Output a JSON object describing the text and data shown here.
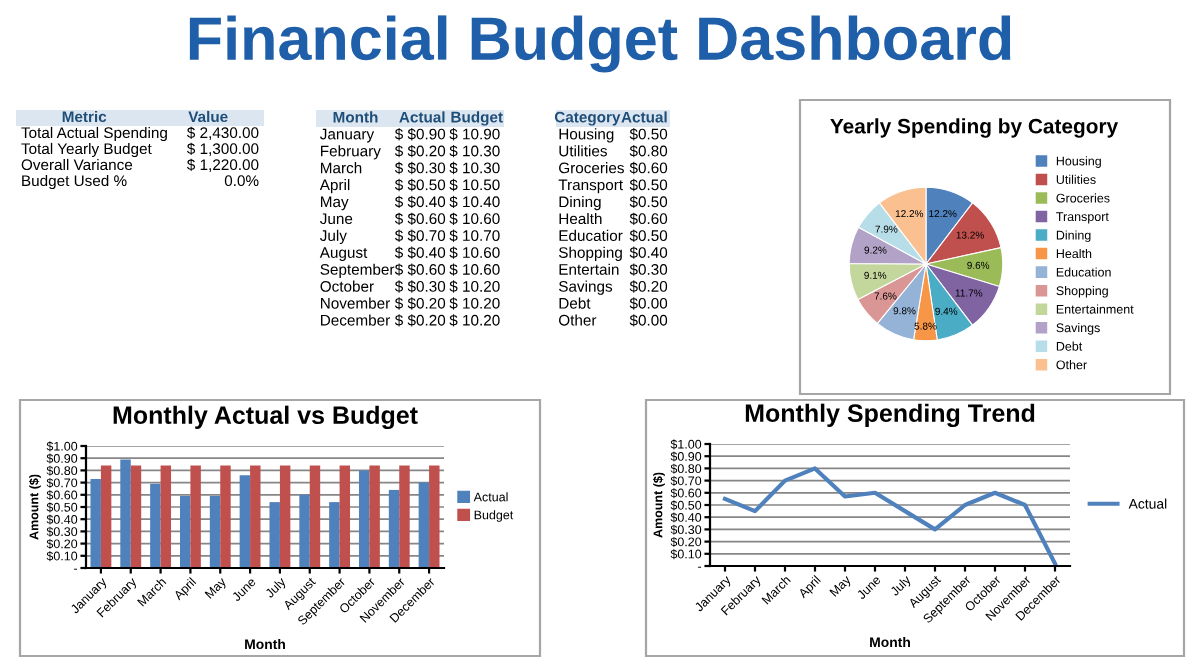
{
  "chart_data": [
    {
      "type": "other",
      "title": "Financial Budget Dashboard"
    },
    {
      "type": "other",
      "categories": [
        "Metric",
        "Value"
      ],
      "annotations": [
        "Total Actual Spending",
        "$ 2,430.00",
        "Total Yearly Budget",
        "$ 1,300.00",
        "Overall Variance",
        "$ 1,220.00",
        "Budget Used %",
        "0.0%"
      ]
    },
    {
      "type": "other",
      "categories": [
        "Month",
        "Actual",
        "Budget"
      ],
      "annotations": [
        "January",
        "$ $0.90",
        "$ 10.90",
        "February",
        "$ $0.20",
        "$ 10.30",
        "March",
        "$ $0.30",
        "$ 10.30",
        "April",
        "$ $0.50",
        "$ 10.50",
        "May",
        "$ $0.40",
        "$ 10.40",
        "June",
        "$ $0.60",
        "$ 10.60",
        "July",
        "$ $0.70",
        "$ 10.70",
        "August",
        "$ $0.40",
        "$ 10.60",
        "September",
        "$ $0.60",
        "$ 10.60",
        "October",
        "$ $0.30",
        "$ 10.20",
        "November",
        "$ $0.20",
        "$ 10.20",
        "December",
        "$ $0.20",
        "$ 10.20"
      ]
    },
    {
      "type": "other",
      "categories": [
        "Category",
        "Actual"
      ],
      "annotations": [
        "Housing",
        "$0.50",
        "Utilities",
        "$0.80",
        "Groceries",
        "$0.60",
        "Transport",
        "$0.50",
        "Dining",
        "$0.50",
        "Health",
        "$0.60",
        "Educatior",
        "$0.50",
        "Shopping",
        "$0.40",
        "Entertain",
        "$0.30",
        "Savings",
        "$0.20",
        "Debt",
        "$0.00",
        "Other",
        "$0.00"
      ]
    },
    {
      "type": "pie",
      "title": "Yearly Spending by Category",
      "legend": "right",
      "categories": [
        "Housing",
        "Utilities",
        "Groceries",
        "Transport",
        "Dining",
        "Health",
        "Education",
        "Shopping",
        "Entertainment",
        "Savings",
        "Debt",
        "Other"
      ],
      "values": [
        12.2,
        13.2,
        9.6,
        11.7,
        9.4,
        5.8,
        9.8,
        7.6,
        9.1,
        9.2,
        7.9,
        12.2
      ],
      "value_labels": [
        "12.2%",
        "13.2%",
        "9.6%",
        "11.7%",
        "9.4%",
        "5.8%",
        "9.8%",
        "7.6%",
        "9.1%",
        "9.2%",
        "7.9%",
        "12.2%"
      ],
      "colors": [
        "#4f81bd",
        "#c0504d",
        "#9bbb59",
        "#8064a2",
        "#4bacc6",
        "#f79646",
        "#95b3d7",
        "#d99694",
        "#c3d69b",
        "#b3a2c7",
        "#b7dee8",
        "#fac090"
      ]
    },
    {
      "type": "bar",
      "title": "Monthly Actual vs Budget",
      "xlabel": "Month",
      "ylabel": "Amount ($)",
      "legend": "right",
      "grid": "y",
      "categories": [
        "January",
        "February",
        "March",
        "April",
        "May",
        "June",
        "July",
        "August",
        "September",
        "October",
        "November",
        "December"
      ],
      "series": [
        {
          "name": "Actual",
          "color": "#4f81bd",
          "values": [
            0.73,
            0.89,
            0.69,
            0.59,
            0.59,
            0.76,
            0.54,
            0.6,
            0.54,
            0.8,
            0.64,
            0.7
          ]
        },
        {
          "name": "Budget",
          "color": "#c0504d",
          "values": [
            0.84,
            0.84,
            0.84,
            0.84,
            0.84,
            0.84,
            0.84,
            0.84,
            0.84,
            0.84,
            0.84,
            0.84
          ]
        }
      ],
      "ylim": [
        0,
        1.0
      ],
      "yticks": [
        {
          "value": 0,
          "label": "-"
        },
        {
          "value": 0.1,
          "label": "$0.10"
        },
        {
          "value": 0.2,
          "label": "$0.20"
        },
        {
          "value": 0.3,
          "label": "$0.30"
        },
        {
          "value": 0.4,
          "label": "$0.40"
        },
        {
          "value": 0.5,
          "label": "$0.50"
        },
        {
          "value": 0.6,
          "label": "$0.60"
        },
        {
          "value": 0.7,
          "label": "$0.70"
        },
        {
          "value": 0.8,
          "label": "$0.80"
        },
        {
          "value": 0.9,
          "label": "$0.90"
        },
        {
          "value": 1.0,
          "label": "$1.00"
        }
      ]
    },
    {
      "type": "line",
      "title": "Monthly Spending Trend",
      "xlabel": "Month",
      "ylabel": "Amount ($)",
      "legend": "right",
      "grid": "y",
      "marker": "none",
      "line_style": "solid",
      "categories": [
        "January",
        "February",
        "March",
        "April",
        "May",
        "June",
        "July",
        "August",
        "September",
        "October",
        "November",
        "December"
      ],
      "series": [
        {
          "name": "Actual",
          "color": "#4f81bd",
          "values": [
            0.55,
            0.45,
            0.7,
            0.8,
            0.57,
            0.6,
            0.45,
            0.3,
            0.5,
            0.6,
            0.5,
            0.02
          ]
        }
      ],
      "ylim": [
        0,
        1.0
      ],
      "yticks": [
        {
          "value": 0,
          "label": "-"
        },
        {
          "value": 0.1,
          "label": "$0.10"
        },
        {
          "value": 0.2,
          "label": "$0.20"
        },
        {
          "value": 0.3,
          "label": "$0.30"
        },
        {
          "value": 0.4,
          "label": "$0.40"
        },
        {
          "value": 0.5,
          "label": "$0.50"
        },
        {
          "value": 0.6,
          "label": "$0.60"
        },
        {
          "value": 0.7,
          "label": "$0.70"
        },
        {
          "value": 0.8,
          "label": "$0.80"
        },
        {
          "value": 0.9,
          "label": "$0.90"
        },
        {
          "value": 1.0,
          "label": "$1.00"
        }
      ]
    }
  ]
}
